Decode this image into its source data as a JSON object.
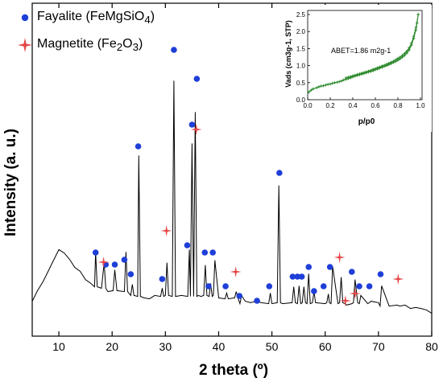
{
  "chart_data": [
    {
      "type": "line",
      "xlabel": "2 theta (º)",
      "ylabel": "Intensity (a. u.)",
      "xlim": [
        5,
        80
      ],
      "xticks": [
        10,
        20,
        30,
        40,
        50,
        60,
        70,
        80
      ],
      "ylim": [
        0,
        100
      ],
      "yticks_shown": false,
      "grid": false,
      "pattern": {
        "x": [
          5,
          6,
          7,
          8,
          9,
          10,
          11,
          12,
          13,
          14,
          15,
          16,
          16.7,
          16.9,
          17.2,
          18,
          18.5,
          18.8,
          19.2,
          20.2,
          20.5,
          20.9,
          22.3,
          22.6,
          22.9,
          23.5,
          23.8,
          24.1,
          24.8,
          25.0,
          25.3,
          26,
          27,
          28,
          29.1,
          29.4,
          29.7,
          30.0,
          30.3,
          30.6,
          31.3,
          31.6,
          31.9,
          33,
          34.2,
          34.5,
          34.7,
          35.0,
          35.3,
          35.6,
          35.9,
          36.2,
          36.7,
          37.2,
          37.5,
          37.8,
          38.2,
          38.5,
          38.8,
          39.0,
          39.3,
          40,
          41.2,
          41.5,
          41.8,
          43.0,
          43.3,
          43.6,
          44.0,
          44.3,
          45,
          46,
          47,
          48,
          49.4,
          49.7,
          50,
          51.0,
          51.3,
          51.6,
          52,
          53.8,
          54.1,
          54.4,
          54.8,
          55.1,
          55.4,
          55.7,
          56.0,
          56.3,
          56.6,
          56.9,
          57.2,
          57.6,
          57.9,
          58.2,
          60.0,
          60.3,
          60.6,
          60.8,
          61.1,
          61.4,
          62.4,
          62.7,
          63.0,
          63.3,
          63.7,
          64,
          65.0,
          65.3,
          65.6,
          66.1,
          66.4,
          66.7,
          68.0,
          68.3,
          68.6,
          70.0,
          70.3,
          70.6,
          72,
          73.5,
          74,
          75,
          76,
          77,
          78,
          79,
          80
        ],
        "y": [
          8,
          12,
          16,
          20,
          25,
          29,
          28,
          25,
          22,
          20,
          17,
          15,
          14,
          28,
          14,
          13,
          24,
          13,
          12,
          12,
          21,
          12,
          12,
          28,
          12,
          10,
          15,
          10,
          10,
          68,
          10,
          9,
          9,
          10,
          10,
          13,
          10,
          10,
          24,
          10,
          10,
          99,
          10,
          10,
          10,
          29,
          10,
          73,
          10,
          86,
          10,
          10,
          10,
          10,
          23,
          10,
          10,
          15,
          10,
          10,
          25,
          9,
          9,
          11,
          9,
          9,
          12,
          9,
          7,
          10,
          8,
          7,
          8,
          7,
          7,
          11,
          7,
          7,
          56,
          7,
          7,
          7,
          14,
          7,
          7,
          14,
          7,
          7,
          14,
          7,
          7,
          19,
          7,
          7,
          12,
          7,
          7,
          7,
          11,
          7,
          7,
          22,
          7,
          7,
          18,
          7,
          7,
          6,
          7,
          7,
          17,
          7,
          7,
          10,
          7,
          7,
          8,
          7,
          6,
          14,
          6,
          6,
          6,
          6,
          5,
          5,
          5,
          4,
          3
        ]
      },
      "series": [
        {
          "name": "Fayalite (FeMgSiO4)",
          "marker": "circle",
          "color": "#1f3fd8",
          "x": [
            16.9,
            18.8,
            20.5,
            22.3,
            23.5,
            24.9,
            29.4,
            31.6,
            34.1,
            35.0,
            35.9,
            37.4,
            38.1,
            38.9,
            41.3,
            43.9,
            47.2,
            49.5,
            51.4,
            53.9,
            54.8,
            55.6,
            56.9,
            57.9,
            59.7,
            60.9,
            65.0,
            66.4,
            68.3,
            70.4
          ],
          "y": [
            28,
            23,
            23,
            25,
            19,
            72,
            17,
            112,
            31,
            81,
            100,
            28,
            14,
            28,
            14,
            10,
            8,
            14,
            61,
            18,
            18,
            18,
            22,
            12,
            14,
            22,
            20,
            14,
            14,
            19
          ]
        },
        {
          "name": "Magnetite (Fe2O3)",
          "marker": "star",
          "color": "#e54747",
          "x": [
            18.4,
            30.2,
            35.8,
            43.2,
            62.7,
            63.8,
            65.6,
            73.7
          ],
          "y": [
            24,
            37,
            79,
            20,
            26,
            8,
            11,
            17
          ]
        }
      ],
      "legend_placement": "top-left",
      "legend": [
        {
          "pre": "Fayalite (FeMgSiO",
          "sub": "4",
          "post": ")"
        },
        {
          "pre": "Magnetite (Fe",
          "sub": "2",
          "mid": "O",
          "sub2": "3",
          "post": ")"
        }
      ]
    },
    {
      "type": "scatter",
      "placement": "inset top-right",
      "xlabel": "p/p0",
      "ylabel": "Vads (cm3g-1, STP)",
      "xlim": [
        0.0,
        1.0
      ],
      "ylim": [
        0.0,
        2.5
      ],
      "xticks": [
        "0.0",
        "0.2",
        "0.4",
        "0.6",
        "0.8",
        "1.0"
      ],
      "yticks": [
        "0.0",
        "0.5",
        "1.0",
        "1.5",
        "2.0",
        "2.5"
      ],
      "annotation": "ABET=1.86 m2g-1",
      "color": "#2e8b2e",
      "series": [
        {
          "x": [
            0.01,
            0.03,
            0.05,
            0.08,
            0.1,
            0.12,
            0.14,
            0.16,
            0.18,
            0.2,
            0.22,
            0.24,
            0.26,
            0.28,
            0.3,
            0.32,
            0.34,
            0.36,
            0.38,
            0.4,
            0.42,
            0.44,
            0.46,
            0.48,
            0.5,
            0.52,
            0.54,
            0.56,
            0.58,
            0.6,
            0.62,
            0.64,
            0.66,
            0.68,
            0.7,
            0.72,
            0.74,
            0.76,
            0.78,
            0.8,
            0.82,
            0.84,
            0.86,
            0.88,
            0.9,
            0.92,
            0.94,
            0.96,
            0.97,
            0.98
          ],
          "y": [
            0.22,
            0.28,
            0.32,
            0.35,
            0.38,
            0.4,
            0.41,
            0.43,
            0.45,
            0.46,
            0.48,
            0.5,
            0.51,
            0.53,
            0.55,
            0.58,
            0.6,
            0.62,
            0.64,
            0.67,
            0.69,
            0.71,
            0.73,
            0.75,
            0.77,
            0.79,
            0.81,
            0.83,
            0.85,
            0.88,
            0.9,
            0.93,
            0.95,
            0.98,
            1.0,
            1.03,
            1.06,
            1.09,
            1.12,
            1.16,
            1.2,
            1.25,
            1.3,
            1.37,
            1.46,
            1.6,
            1.8,
            2.05,
            2.25,
            2.5
          ]
        },
        {
          "x": [
            0.98,
            0.96,
            0.94,
            0.92,
            0.9,
            0.88,
            0.86,
            0.84,
            0.82,
            0.8,
            0.78,
            0.76,
            0.74,
            0.72,
            0.7,
            0.68,
            0.66,
            0.64,
            0.62,
            0.6,
            0.58,
            0.56,
            0.54,
            0.52,
            0.5,
            0.48,
            0.46,
            0.44,
            0.42,
            0.4,
            0.38,
            0.36,
            0.34
          ],
          "y": [
            2.5,
            2.12,
            1.86,
            1.66,
            1.52,
            1.43,
            1.36,
            1.3,
            1.25,
            1.21,
            1.17,
            1.13,
            1.1,
            1.07,
            1.04,
            1.01,
            0.99,
            0.96,
            0.94,
            0.91,
            0.89,
            0.86,
            0.84,
            0.82,
            0.8,
            0.78,
            0.76,
            0.74,
            0.72,
            0.7,
            0.68,
            0.66,
            0.64
          ]
        }
      ]
    }
  ]
}
